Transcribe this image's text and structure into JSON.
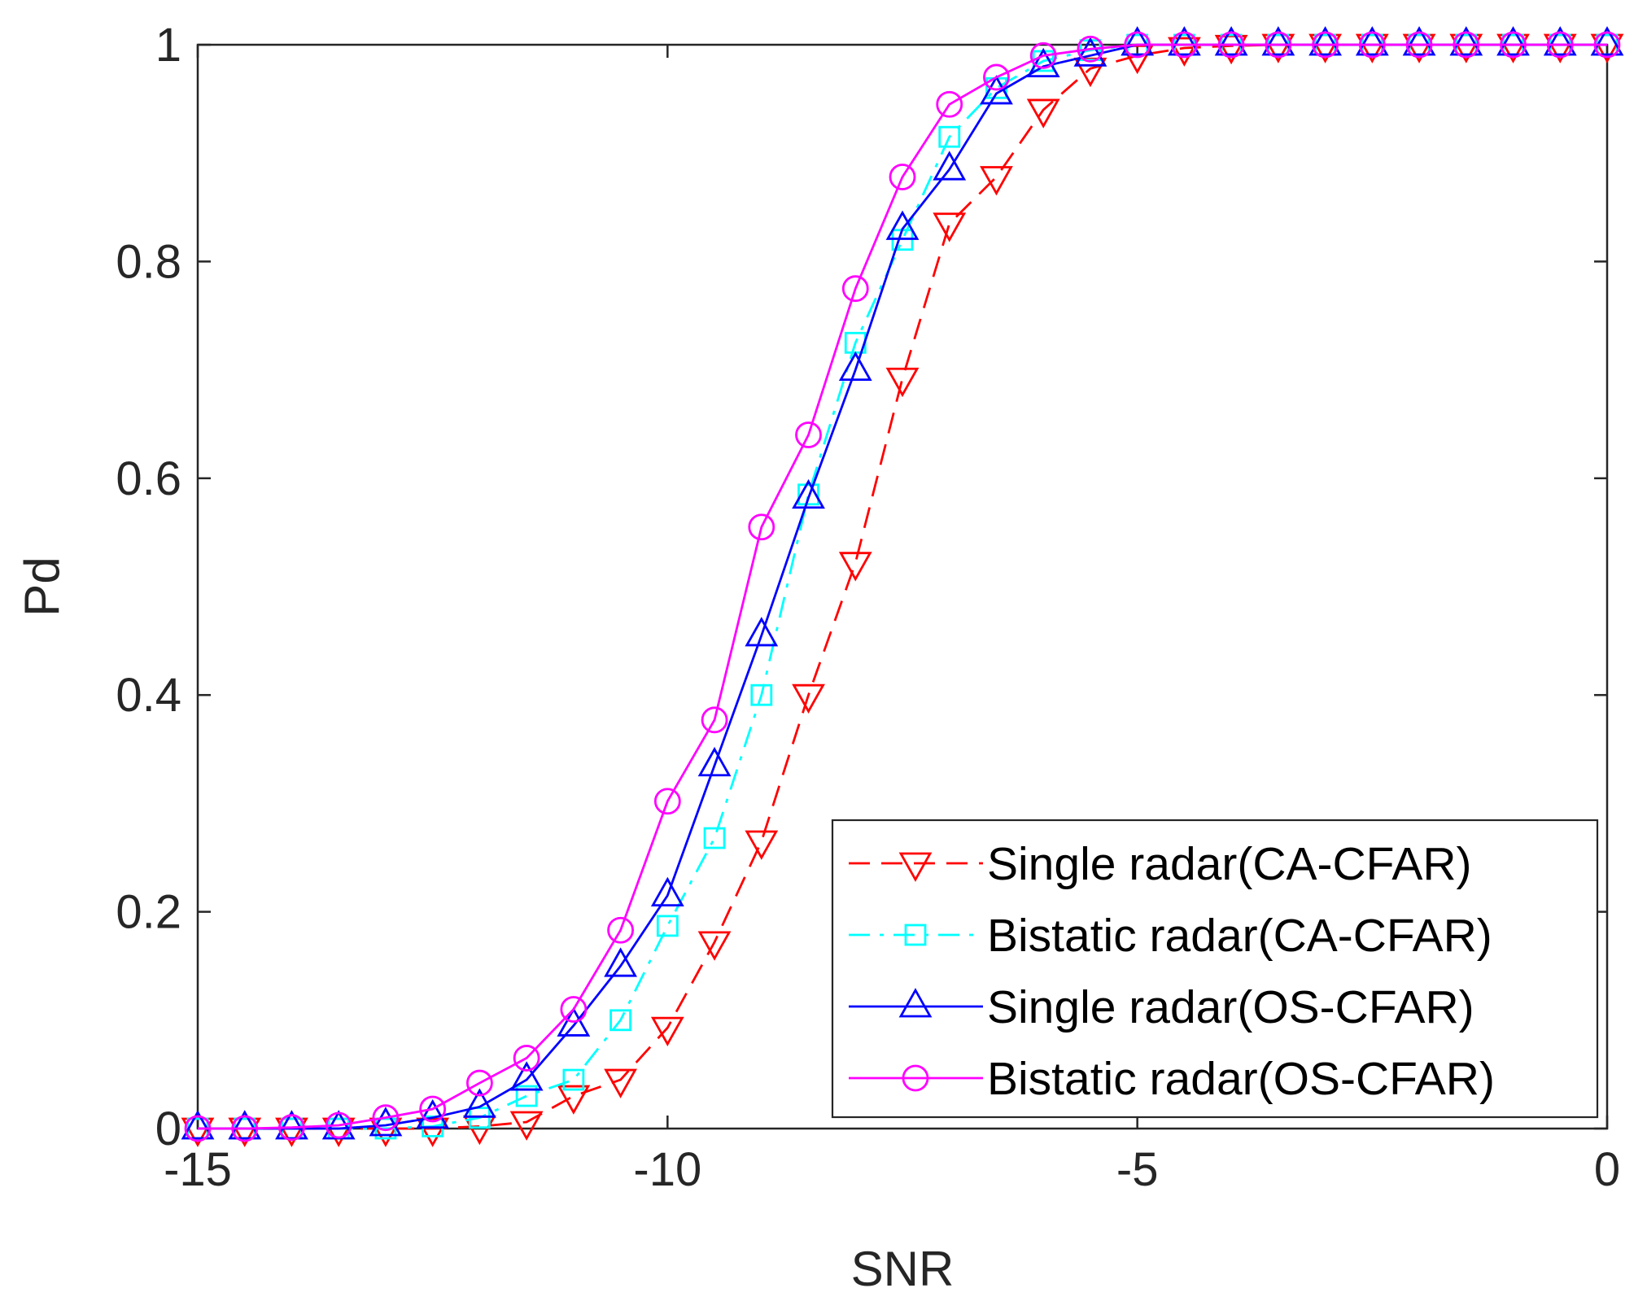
{
  "chart_data": {
    "type": "line",
    "title": "",
    "xlabel": "SNR",
    "ylabel": "Pd",
    "xlim": [
      -15,
      0
    ],
    "ylim": [
      0,
      1
    ],
    "xticks": [
      -15,
      -10,
      -5,
      0
    ],
    "xtick_labels": [
      "-15",
      "-10",
      "-5",
      "0"
    ],
    "yticks": [
      0,
      0.2,
      0.4,
      0.6,
      0.8,
      1
    ],
    "ytick_labels": [
      "0",
      "0.2",
      "0.4",
      "0.6",
      "0.8",
      "1"
    ],
    "grid": false,
    "legend_position": "bottom-right",
    "x": [
      -15,
      -14.5,
      -14,
      -13.5,
      -13,
      -12.5,
      -12,
      -11.5,
      -11,
      -10.5,
      -10,
      -9.5,
      -9,
      -8.5,
      -8,
      -7.5,
      -7,
      -6.5,
      -6,
      -5.5,
      -5,
      -4.5,
      -4,
      -3.5,
      -3,
      -2.5,
      -2,
      -1.5,
      -1,
      -0.5,
      0
    ],
    "series": [
      {
        "name": "Single radar(CA-CFAR)",
        "color": "#ff0000",
        "line_style": "dashed",
        "marker": "triangle-down",
        "values": [
          0,
          0,
          0,
          0,
          0,
          0,
          0.002,
          0.006,
          0.03,
          0.045,
          0.093,
          0.172,
          0.265,
          0.4,
          0.522,
          0.692,
          0.835,
          0.878,
          0.94,
          0.978,
          0.99,
          0.997,
          0.999,
          1,
          1,
          1,
          1,
          1,
          1,
          1,
          1
        ]
      },
      {
        "name": "Bistatic radar(CA-CFAR)",
        "color": "#00ffff",
        "line_style": "dashdot",
        "marker": "square",
        "values": [
          0,
          0,
          0,
          0,
          0,
          0.002,
          0.01,
          0.03,
          0.045,
          0.1,
          0.187,
          0.268,
          0.4,
          0.585,
          0.725,
          0.82,
          0.915,
          0.96,
          0.985,
          0.995,
          1,
          1,
          1,
          1,
          1,
          1,
          1,
          1,
          1,
          1,
          1
        ]
      },
      {
        "name": "Single radar(OS-CFAR)",
        "color": "#0000ff",
        "line_style": "solid",
        "marker": "triangle-up",
        "values": [
          0,
          0,
          0,
          0,
          0.003,
          0.01,
          0.02,
          0.045,
          0.095,
          0.15,
          0.215,
          0.335,
          0.455,
          0.582,
          0.7,
          0.83,
          0.885,
          0.955,
          0.98,
          0.99,
          1,
          1,
          1,
          1,
          1,
          1,
          1,
          1,
          1,
          1,
          1
        ]
      },
      {
        "name": "Bistatic radar(OS-CFAR)",
        "color": "#ff00ff",
        "line_style": "solid",
        "marker": "circle",
        "values": [
          0,
          0,
          0.001,
          0.003,
          0.01,
          0.018,
          0.042,
          0.065,
          0.11,
          0.183,
          0.302,
          0.377,
          0.555,
          0.64,
          0.775,
          0.878,
          0.945,
          0.97,
          0.99,
          0.996,
          1,
          1,
          1,
          1,
          1,
          1,
          1,
          1,
          1,
          1,
          1
        ]
      }
    ]
  }
}
